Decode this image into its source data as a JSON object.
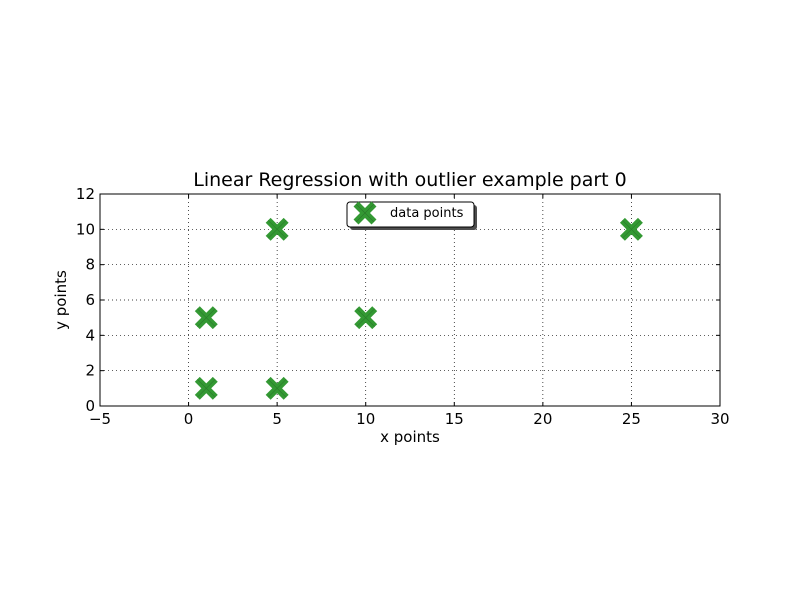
{
  "chart_data": {
    "type": "scatter",
    "title": "Linear Regression with outlier example part 0",
    "xlabel": "x points",
    "ylabel": "y points",
    "xlim": [
      -5,
      30
    ],
    "ylim": [
      0,
      12
    ],
    "x_ticks": [
      -5,
      0,
      5,
      10,
      15,
      20,
      25,
      30
    ],
    "x_tick_labels": [
      "−5",
      "0",
      "5",
      "10",
      "15",
      "20",
      "25",
      "30"
    ],
    "y_ticks": [
      0,
      2,
      4,
      6,
      8,
      10,
      12
    ],
    "y_tick_labels": [
      "0",
      "2",
      "4",
      "6",
      "8",
      "10",
      "12"
    ],
    "grid": true,
    "legend_position": "upper-center",
    "series": [
      {
        "name": "data points",
        "marker": "x-icon",
        "color": "#339933",
        "points": [
          {
            "x": 1,
            "y": 1
          },
          {
            "x": 1,
            "y": 5
          },
          {
            "x": 5,
            "y": 1
          },
          {
            "x": 5,
            "y": 10
          },
          {
            "x": 10,
            "y": 5
          },
          {
            "x": 25,
            "y": 10
          }
        ]
      }
    ]
  }
}
